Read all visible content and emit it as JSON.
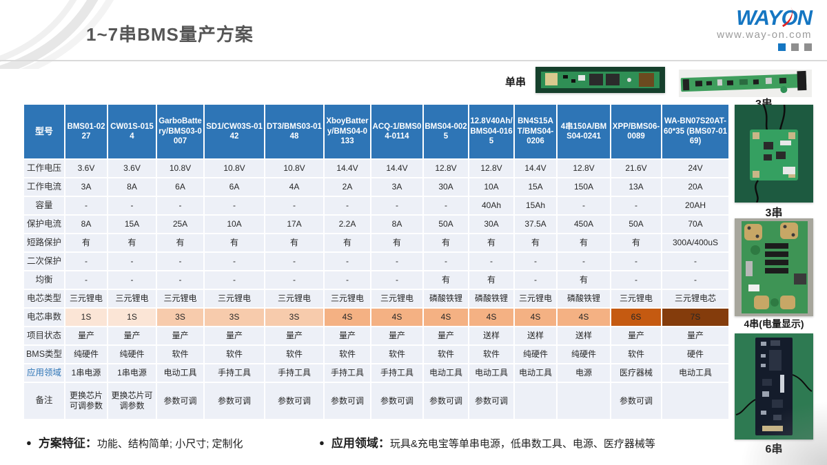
{
  "header": {
    "title": "1~7串BMS量产方案",
    "logo": {
      "brand": "WAYON",
      "url": "www.way-on.com"
    }
  },
  "photos": {
    "strip1_label": "单串",
    "strip2_label": "3串",
    "side": [
      {
        "label": "3串"
      },
      {
        "label": "4串(电量显示)"
      },
      {
        "label": "6串"
      }
    ]
  },
  "table": {
    "corner_label": "型号",
    "models": [
      "BMS01-0227",
      "CW01S-0154",
      "GarboBattery/BMS03-0007",
      "SD1/CW03S-0142",
      "DT3/BMS03-0148",
      "XboyBattery/BMS04-0133",
      "ACQ-1/BMS04-0114",
      "BMS04-0025",
      "12.8V40Ah/BMS04-0165",
      "BN4S15AT/BMS04-0206",
      "4串150A/BMS04-0241",
      "XPP/BMS06-0089",
      "WA-BN07S20AT-60*35 (BMS07-0169)"
    ],
    "rows": [
      {
        "label": "工作电压",
        "values": [
          "3.6V",
          "3.6V",
          "10.8V",
          "10.8V",
          "10.8V",
          "14.4V",
          "14.4V",
          "12.8V",
          "12.8V",
          "14.4V",
          "12.8V",
          "21.6V",
          "24V"
        ]
      },
      {
        "label": "工作电流",
        "values": [
          "3A",
          "8A",
          "6A",
          "6A",
          "4A",
          "2A",
          "3A",
          "30A",
          "10A",
          "15A",
          "150A",
          "13A",
          "20A"
        ]
      },
      {
        "label": "容量",
        "values": [
          "-",
          "-",
          "-",
          "-",
          "-",
          "-",
          "-",
          "-",
          "40Ah",
          "15Ah",
          "-",
          "-",
          "20AH"
        ]
      },
      {
        "label": "保护电流",
        "values": [
          "8A",
          "15A",
          "25A",
          "10A",
          "17A",
          "2.2A",
          "8A",
          "50A",
          "30A",
          "37.5A",
          "450A",
          "50A",
          "70A"
        ]
      },
      {
        "label": "短路保护",
        "values": [
          "有",
          "有",
          "有",
          "有",
          "有",
          "有",
          "有",
          "有",
          "有",
          "有",
          "有",
          "有",
          "300A/400uS"
        ]
      },
      {
        "label": "二次保护",
        "values": [
          "-",
          "-",
          "-",
          "-",
          "-",
          "-",
          "-",
          "-",
          "-",
          "-",
          "-",
          "-",
          "-"
        ]
      },
      {
        "label": "均衡",
        "values": [
          "-",
          "-",
          "-",
          "-",
          "-",
          "-",
          "-",
          "有",
          "有",
          "-",
          "有",
          "-",
          "-"
        ]
      },
      {
        "label": "电芯类型",
        "values": [
          "三元锂电",
          "三元锂电",
          "三元锂电",
          "三元锂电",
          "三元锂电",
          "三元锂电",
          "三元锂电",
          "磷酸铁锂",
          "磷酸铁锂",
          "三元锂电",
          "磷酸铁锂",
          "三元锂电",
          "三元锂电芯"
        ]
      },
      {
        "label": "电芯串数",
        "highlight": true,
        "values": [
          "1S",
          "1S",
          "3S",
          "3S",
          "3S",
          "4S",
          "4S",
          "4S",
          "4S",
          "4S",
          "4S",
          "6S",
          "7S"
        ]
      },
      {
        "label": "项目状态",
        "values": [
          "量产",
          "量产",
          "量产",
          "量产",
          "量产",
          "量产",
          "量产",
          "量产",
          "送样",
          "送样",
          "送样",
          "量产",
          "量产"
        ]
      },
      {
        "label": "BMS类型",
        "values": [
          "纯硬件",
          "纯硬件",
          "软件",
          "软件",
          "软件",
          "软件",
          "软件",
          "软件",
          "软件",
          "纯硬件",
          "纯硬件",
          "软件",
          "硬件"
        ]
      },
      {
        "label": "应用领域",
        "label_blue": true,
        "values": [
          "1串电源",
          "1串电源",
          "电动工具",
          "手持工具",
          "手持工具",
          "手持工具",
          "手持工具",
          "电动工具",
          "电动工具",
          "电动工具",
          "电源",
          "医疗器械",
          "电动工具"
        ]
      },
      {
        "label": "备注",
        "values": [
          "更换芯片可调参数",
          "更换芯片可调参数",
          "参数可调",
          "参数可调",
          "参数可调",
          "参数可调",
          "参数可调",
          "参数可调",
          "参数可调",
          "",
          "",
          "参数可调",
          ""
        ]
      }
    ],
    "series_colors": {
      "1S": "#fbe5d6",
      "3S": "#f7cbac",
      "4S": "#f4b183",
      "6S": "#c55a11",
      "7S": "#843c0c"
    },
    "header_color": "#2e75b6",
    "cell_color": "#edf0f7"
  },
  "footer": {
    "bullet_marker": "●",
    "feature_label": "方案特征：",
    "feature_text": "功能、结构简单; 小尺寸; 定制化",
    "domain_label": "应用领域：",
    "domain_text": "玩具&充电宝等单串电源，低串数工具、电源、医疗器械等"
  }
}
